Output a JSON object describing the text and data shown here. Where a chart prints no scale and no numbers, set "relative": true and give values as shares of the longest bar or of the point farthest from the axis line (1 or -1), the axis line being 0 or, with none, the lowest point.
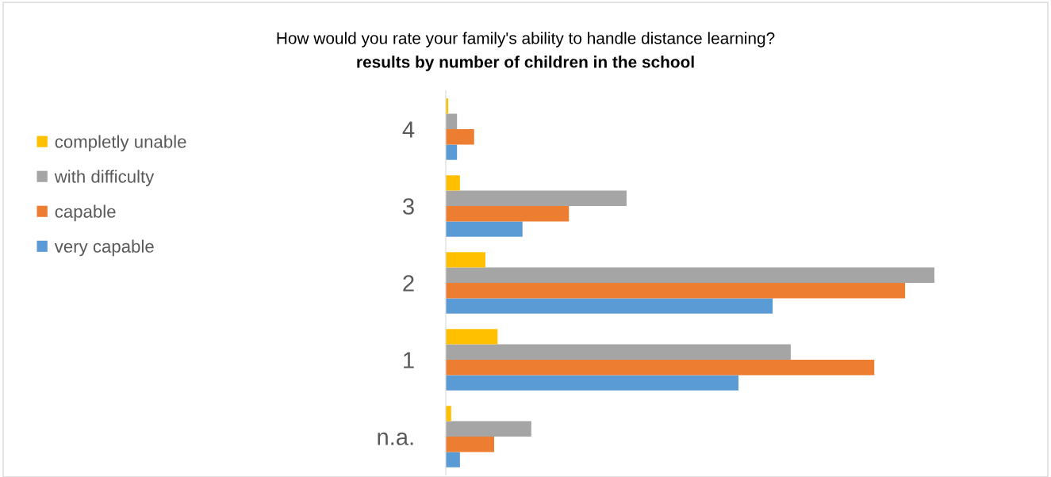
{
  "chart_data": {
    "type": "bar",
    "orientation": "horizontal",
    "relative": true,
    "title": "How would you rate your family's ability to handle distance learning?",
    "subtitle": "results by number of children in the school",
    "categories": [
      "4",
      "3",
      "2",
      "1",
      "n.a."
    ],
    "series": [
      {
        "name": "very capable",
        "color": "#5b9bd5",
        "values": [
          0.023,
          0.157,
          0.669,
          0.599,
          0.029
        ]
      },
      {
        "name": "capable",
        "color": "#ed7d31",
        "values": [
          0.058,
          0.252,
          0.94,
          0.877,
          0.099
        ]
      },
      {
        "name": "with difficulty",
        "color": "#a5a5a5",
        "values": [
          0.023,
          0.37,
          1,
          0.706,
          0.175
        ]
      },
      {
        "name": "completly unable",
        "color": "#ffc000",
        "values": [
          0.005,
          0.029,
          0.081,
          0.106,
          0.011
        ]
      }
    ],
    "legend": "left",
    "grid": false
  }
}
